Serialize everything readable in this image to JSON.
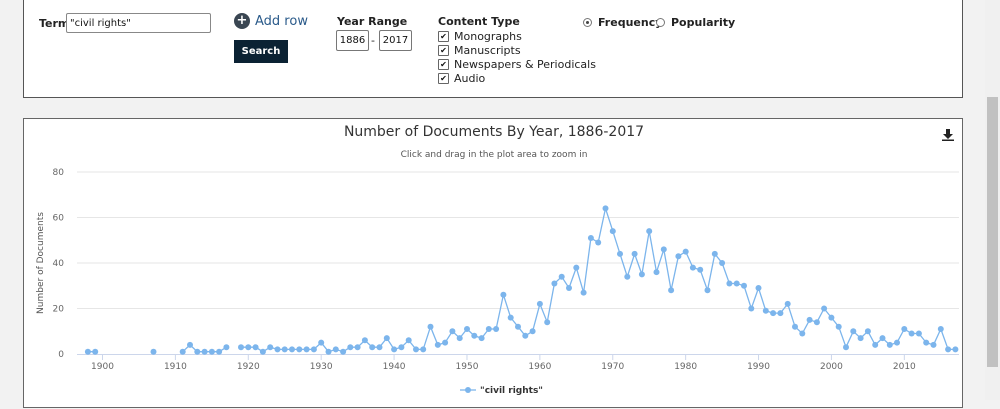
{
  "search": {
    "term_label": "Term",
    "term_value": "\"civil rights\"",
    "add_row_label": "Add row",
    "search_button_label": "Search",
    "year_range_label": "Year Range",
    "year_start": "1886",
    "year_sep": "-",
    "year_end": "2017",
    "content_type_label": "Content Type",
    "content_types": [
      {
        "label": "Monographs",
        "checked": true
      },
      {
        "label": "Manuscripts",
        "checked": true
      },
      {
        "label": "Newspapers & Periodicals",
        "checked": true
      },
      {
        "label": "Audio",
        "checked": true
      }
    ],
    "modes": [
      {
        "label": "Frequency",
        "selected": true
      },
      {
        "label": "Popularity",
        "selected": false
      }
    ]
  },
  "chart_data": {
    "type": "line",
    "title": "Number of Documents By Year, 1886-2017",
    "subtitle": "Click and drag in the plot area to zoom in",
    "xlabel": "",
    "ylabel": "Number of Documents",
    "ylim": [
      0,
      80
    ],
    "yticks": [
      0,
      20,
      40,
      60,
      80
    ],
    "xticks": [
      1900,
      1910,
      1920,
      1930,
      1940,
      1950,
      1960,
      1970,
      1980,
      1990,
      2000,
      2010
    ],
    "xlim": [
      1896.5,
      2017.5
    ],
    "grid": true,
    "legend_position": "bottom-center",
    "color": "#7cb5ec",
    "series": [
      {
        "name": "\"civil rights\"",
        "points": [
          [
            1898,
            1
          ],
          [
            1899,
            1
          ],
          [
            1907,
            1
          ],
          [
            1911,
            1
          ],
          [
            1912,
            4
          ],
          [
            1913,
            1
          ],
          [
            1914,
            1
          ],
          [
            1915,
            1
          ],
          [
            1916,
            1
          ],
          [
            1917,
            3
          ],
          [
            1919,
            3
          ],
          [
            1920,
            3
          ],
          [
            1921,
            3
          ],
          [
            1922,
            1
          ],
          [
            1923,
            3
          ],
          [
            1924,
            2
          ],
          [
            1925,
            2
          ],
          [
            1926,
            2
          ],
          [
            1927,
            2
          ],
          [
            1928,
            2
          ],
          [
            1929,
            2
          ],
          [
            1930,
            5
          ],
          [
            1931,
            1
          ],
          [
            1932,
            2
          ],
          [
            1933,
            1
          ],
          [
            1934,
            3
          ],
          [
            1935,
            3
          ],
          [
            1936,
            6
          ],
          [
            1937,
            3
          ],
          [
            1938,
            3
          ],
          [
            1939,
            7
          ],
          [
            1940,
            2
          ],
          [
            1941,
            3
          ],
          [
            1942,
            6
          ],
          [
            1943,
            2
          ],
          [
            1944,
            2
          ],
          [
            1945,
            12
          ],
          [
            1946,
            4
          ],
          [
            1947,
            5
          ],
          [
            1948,
            10
          ],
          [
            1949,
            7
          ],
          [
            1950,
            11
          ],
          [
            1951,
            8
          ],
          [
            1952,
            7
          ],
          [
            1953,
            11
          ],
          [
            1954,
            11
          ],
          [
            1955,
            26
          ],
          [
            1956,
            16
          ],
          [
            1957,
            12
          ],
          [
            1958,
            8
          ],
          [
            1959,
            10
          ],
          [
            1960,
            22
          ],
          [
            1961,
            14
          ],
          [
            1962,
            31
          ],
          [
            1963,
            34
          ],
          [
            1964,
            29
          ],
          [
            1965,
            38
          ],
          [
            1966,
            27
          ],
          [
            1967,
            51
          ],
          [
            1968,
            49
          ],
          [
            1969,
            64
          ],
          [
            1970,
            54
          ],
          [
            1971,
            44
          ],
          [
            1972,
            34
          ],
          [
            1973,
            44
          ],
          [
            1974,
            35
          ],
          [
            1975,
            54
          ],
          [
            1976,
            36
          ],
          [
            1977,
            46
          ],
          [
            1978,
            28
          ],
          [
            1979,
            43
          ],
          [
            1980,
            45
          ],
          [
            1981,
            38
          ],
          [
            1982,
            37
          ],
          [
            1983,
            28
          ],
          [
            1984,
            44
          ],
          [
            1985,
            40
          ],
          [
            1986,
            31
          ],
          [
            1987,
            31
          ],
          [
            1988,
            30
          ],
          [
            1989,
            20
          ],
          [
            1990,
            29
          ],
          [
            1991,
            19
          ],
          [
            1992,
            18
          ],
          [
            1993,
            18
          ],
          [
            1994,
            22
          ],
          [
            1995,
            12
          ],
          [
            1996,
            9
          ],
          [
            1997,
            15
          ],
          [
            1998,
            14
          ],
          [
            1999,
            20
          ],
          [
            2000,
            16
          ],
          [
            2001,
            12
          ],
          [
            2002,
            3
          ],
          [
            2003,
            10
          ],
          [
            2004,
            7
          ],
          [
            2005,
            10
          ],
          [
            2006,
            4
          ],
          [
            2007,
            7
          ],
          [
            2008,
            4
          ],
          [
            2009,
            5
          ],
          [
            2010,
            11
          ],
          [
            2011,
            9
          ],
          [
            2012,
            9
          ],
          [
            2013,
            5
          ],
          [
            2014,
            4
          ],
          [
            2015,
            11
          ],
          [
            2016,
            2
          ],
          [
            2017,
            2
          ]
        ]
      }
    ]
  }
}
